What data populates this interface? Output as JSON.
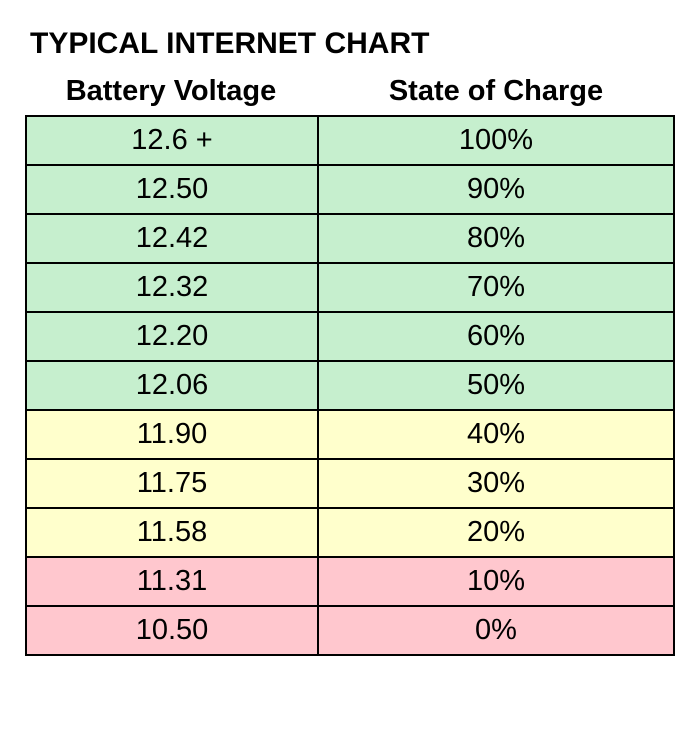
{
  "title": "TYPICAL INTERNET CHART",
  "table": {
    "columns": [
      "Battery Voltage",
      "State of Charge"
    ],
    "rows": [
      {
        "voltage": "12.6 +",
        "soc": "100%",
        "band": "green"
      },
      {
        "voltage": "12.50",
        "soc": "90%",
        "band": "green"
      },
      {
        "voltage": "12.42",
        "soc": "80%",
        "band": "green"
      },
      {
        "voltage": "12.32",
        "soc": "70%",
        "band": "green"
      },
      {
        "voltage": "12.20",
        "soc": "60%",
        "band": "green"
      },
      {
        "voltage": "12.06",
        "soc": "50%",
        "band": "green"
      },
      {
        "voltage": "11.90",
        "soc": "40%",
        "band": "yellow"
      },
      {
        "voltage": "11.75",
        "soc": "30%",
        "band": "yellow"
      },
      {
        "voltage": "11.58",
        "soc": "20%",
        "band": "yellow"
      },
      {
        "voltage": "11.31",
        "soc": "10%",
        "band": "red"
      },
      {
        "voltage": "10.50",
        "soc": "0%",
        "band": "red"
      }
    ],
    "band_colors": {
      "green": "#c6efce",
      "yellow": "#ffffcc",
      "red": "#ffc7ce"
    },
    "border_color": "#000000"
  },
  "chart_data": {
    "type": "table",
    "title": "TYPICAL INTERNET CHART",
    "columns": [
      "Battery Voltage",
      "State of Charge"
    ],
    "rows": [
      [
        "12.6 +",
        "100%"
      ],
      [
        "12.50",
        "90%"
      ],
      [
        "12.42",
        "80%"
      ],
      [
        "12.32",
        "70%"
      ],
      [
        "12.20",
        "60%"
      ],
      [
        "12.06",
        "50%"
      ],
      [
        "11.90",
        "40%"
      ],
      [
        "11.75",
        "30%"
      ],
      [
        "11.58",
        "20%"
      ],
      [
        "11.31",
        "10%"
      ],
      [
        "10.50",
        "0%"
      ]
    ],
    "series": [
      {
        "name": "Battery Voltage (V)",
        "values": [
          12.6,
          12.5,
          12.42,
          12.32,
          12.2,
          12.06,
          11.9,
          11.75,
          11.58,
          11.31,
          10.5
        ]
      },
      {
        "name": "State of Charge (%)",
        "values": [
          100,
          90,
          80,
          70,
          60,
          50,
          40,
          30,
          20,
          10,
          0
        ]
      }
    ],
    "row_color_bands": {
      "green_rows_soc": [
        100,
        90,
        80,
        70,
        60,
        50
      ],
      "yellow_rows_soc": [
        40,
        30,
        20
      ],
      "red_rows_soc": [
        10,
        0
      ]
    }
  }
}
